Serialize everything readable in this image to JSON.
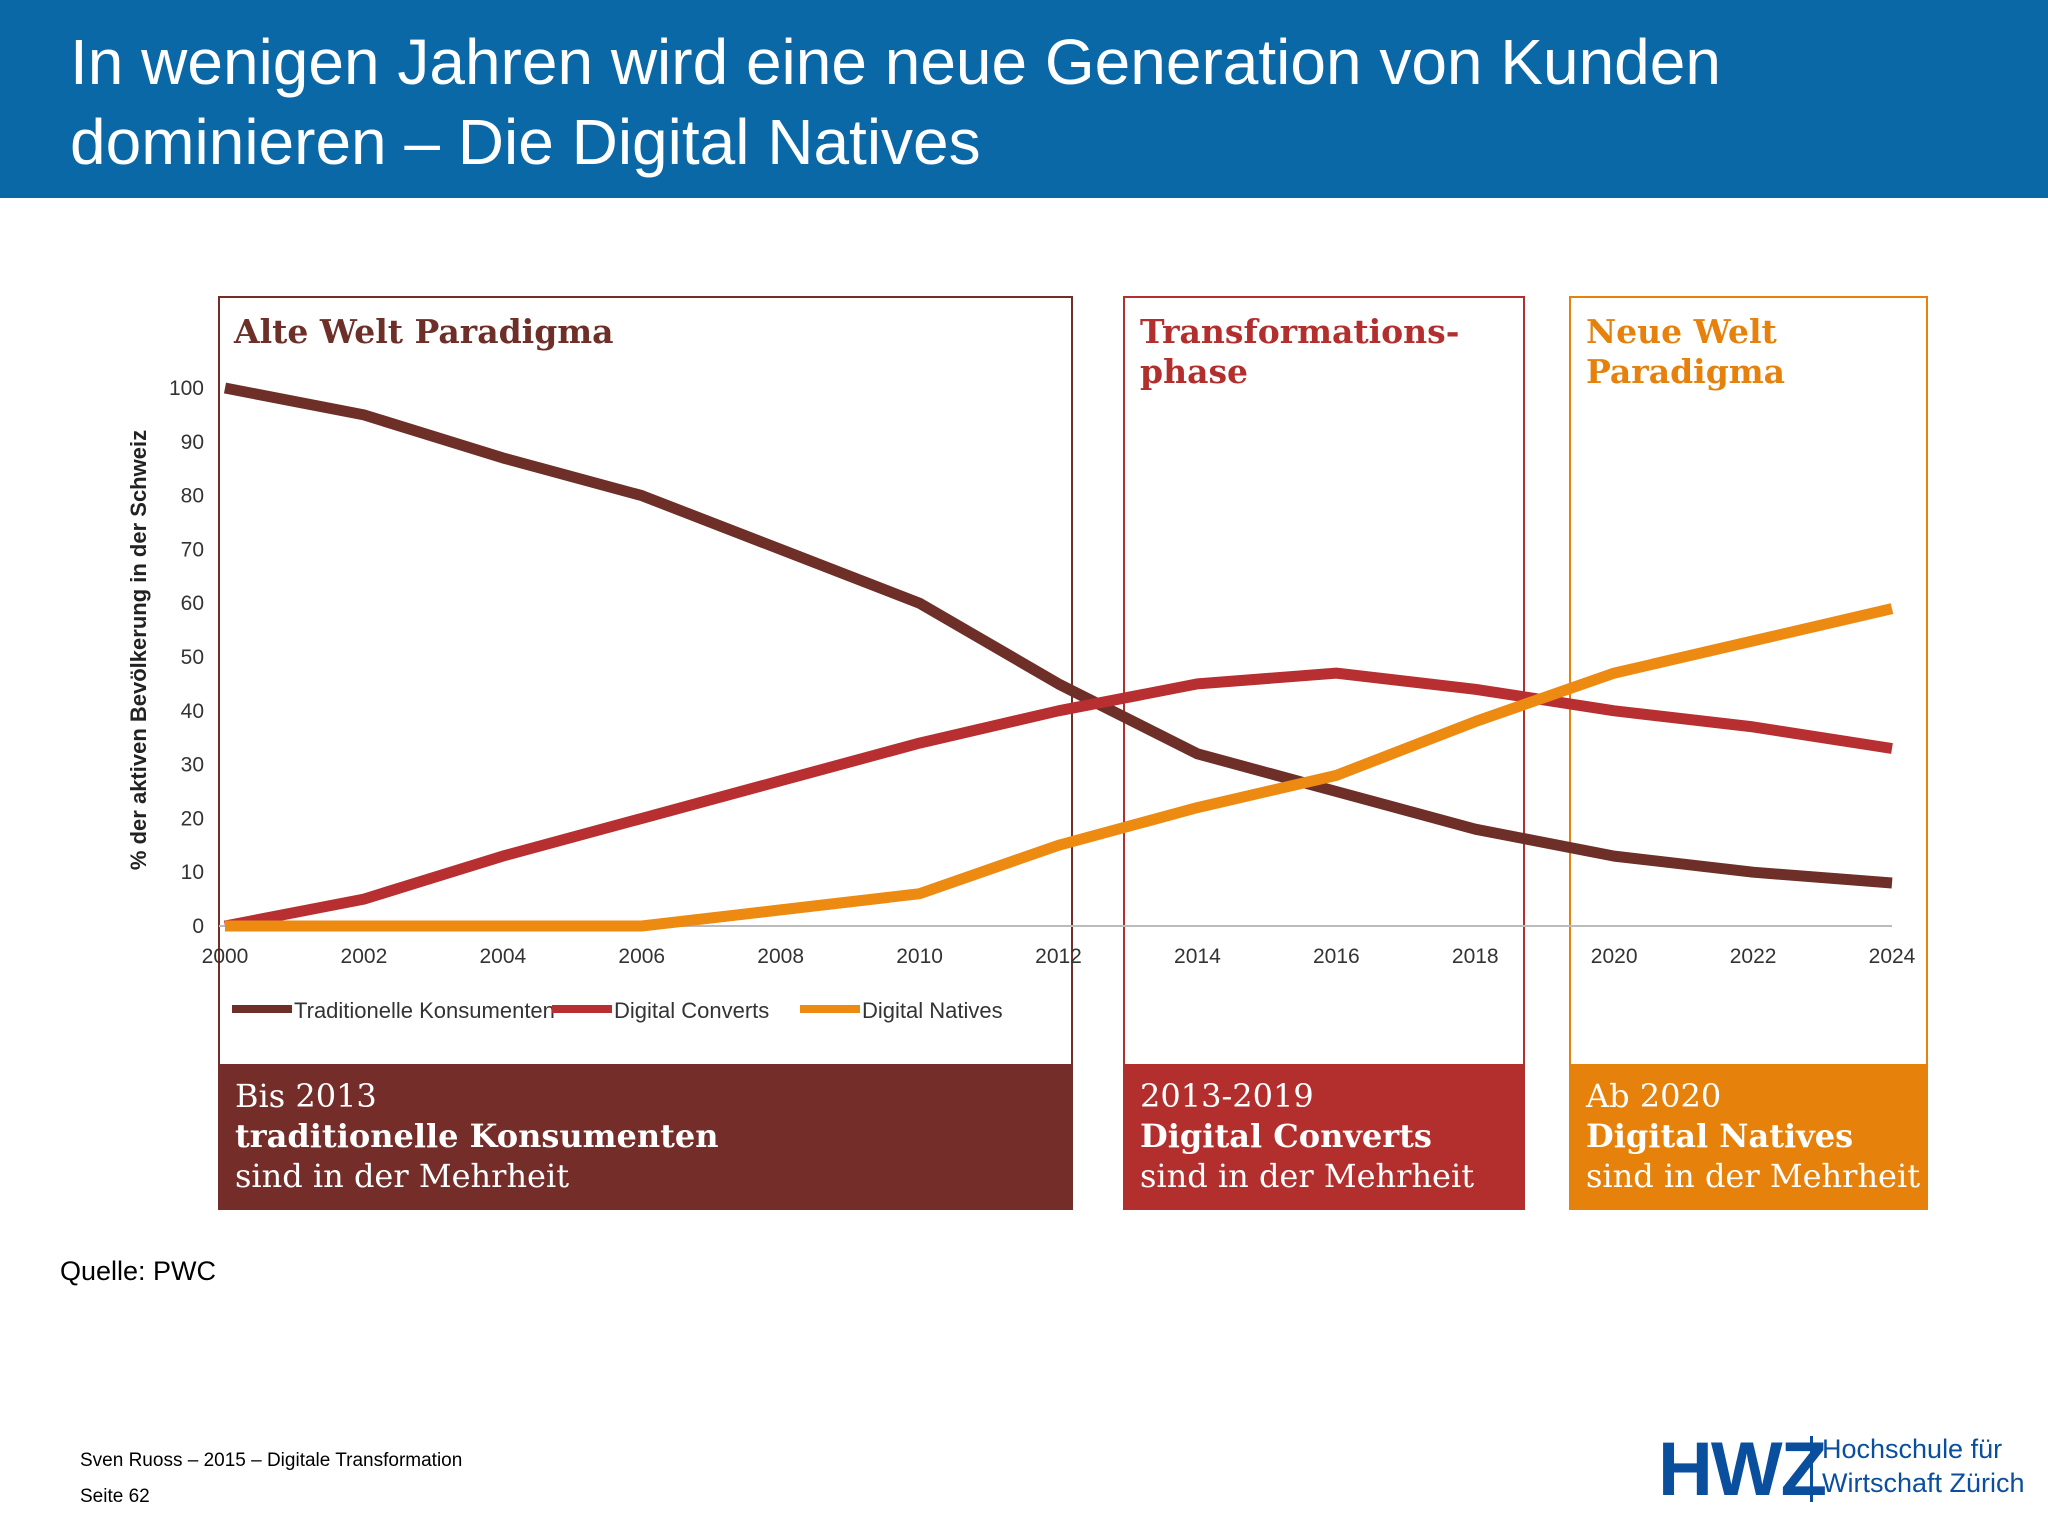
{
  "slide": {
    "title": "In wenigen Jahren wird eine neue Generation von Kunden\ndominieren – Die Digital Natives",
    "source": "Quelle: PWC",
    "footer": {
      "line1": "Sven Ruoss – 2015 – Digitale Transformation",
      "line2": "Seite 62"
    },
    "logo": {
      "mark": "HWZ",
      "line1": "Hochschule für",
      "line2": "Wirtschaft Zürich"
    }
  },
  "colors": {
    "header_bg": "#0a68a6",
    "traditionelle": "#6e2f28",
    "converts": "#b72f30",
    "natives": "#ec8a12",
    "box_alt": "#742d28",
    "box_trans": "#b22f2e",
    "box_neu": "#e6820c"
  },
  "panels": [
    {
      "heading": [
        "Alte Welt Paradigma"
      ],
      "banner": [
        "Bis 2013",
        "traditionelle Konsumenten",
        "sind in der Mehrheit"
      ]
    },
    {
      "heading": [
        "Transformations-",
        "phase"
      ],
      "banner": [
        "2013-2019",
        "Digital Converts",
        "sind in der Mehrheit"
      ]
    },
    {
      "heading": [
        "Neue Welt",
        "Paradigma"
      ],
      "banner": [
        "Ab 2020",
        "Digital Natives",
        "sind in der Mehrheit"
      ]
    }
  ],
  "chart_data": {
    "type": "line",
    "title": "",
    "xlabel": "",
    "ylabel": "% der aktiven Bevölkerung in der Schweiz",
    "x": [
      2000,
      2002,
      2004,
      2006,
      2008,
      2010,
      2012,
      2014,
      2016,
      2018,
      2020,
      2022,
      2024
    ],
    "xticks": [
      "2000",
      "2002",
      "2004",
      "2006",
      "2008",
      "2010",
      "2012",
      "2014",
      "2016",
      "2018",
      "2020",
      "2022",
      "2024"
    ],
    "yticks": [
      "0",
      "10",
      "20",
      "30",
      "40",
      "50",
      "60",
      "70",
      "80",
      "90",
      "100"
    ],
    "xlim": [
      2000,
      2024
    ],
    "ylim": [
      0,
      100
    ],
    "grid": false,
    "legend": "bottom-left",
    "series": [
      {
        "name": "Traditionelle Konsumenten",
        "color": "#6e2f28",
        "values": [
          100,
          95,
          87,
          80,
          70,
          60,
          45,
          32,
          25,
          18,
          13,
          10,
          8
        ]
      },
      {
        "name": "Digital Converts",
        "color": "#b72f30",
        "values": [
          0,
          5,
          13,
          20,
          27,
          34,
          40,
          45,
          47,
          44,
          40,
          37,
          33
        ]
      },
      {
        "name": "Digital Natives",
        "color": "#ec8a12",
        "values": [
          0,
          0,
          0,
          0,
          3,
          6,
          15,
          22,
          28,
          38,
          47,
          53,
          59
        ]
      }
    ]
  }
}
